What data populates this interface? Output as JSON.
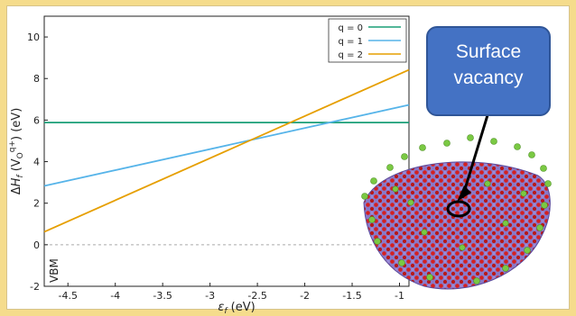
{
  "colors": {
    "background": "#f5dc8c",
    "series_q0": "#1a9e77",
    "series_q1": "#56b4e9",
    "series_q2": "#e69f00",
    "callout_fill": "#4472c4",
    "vbm_line": "#aaaaaa"
  },
  "callout": {
    "line1": "Surface",
    "line2": "vacancy"
  },
  "illustration": {
    "description_icon": "nanoparticle-with-surface-vacancy-icon"
  },
  "chart_data": {
    "type": "line",
    "xlabel": "ε_f (eV)",
    "ylabel": "ΔH_f (V_O^q+) (eV)",
    "xlim": [
      -4.75,
      -0.9
    ],
    "ylim": [
      -2,
      11
    ],
    "xticks": [
      -4.5,
      -4,
      -3.5,
      -3,
      -2.5,
      -2,
      -1.5,
      -1
    ],
    "xtick_labels": [
      "-4.5",
      "-4",
      "-3.5",
      "-3",
      "-2.5",
      "-2",
      "-1.5",
      "-1"
    ],
    "yticks": [
      -2,
      0,
      2,
      4,
      6,
      8,
      10
    ],
    "ytick_labels": [
      "-2",
      "0",
      "2",
      "4",
      "6",
      "8",
      "10"
    ],
    "grid": false,
    "legend_position": "top-right",
    "reference_line": {
      "y": 0,
      "label": "VBM"
    },
    "series": [
      {
        "name": "q = 0",
        "x": [
          -4.75,
          -0.9
        ],
        "y": [
          5.88,
          5.88
        ]
      },
      {
        "name": "q = 1",
        "x": [
          -4.75,
          -0.9
        ],
        "y": [
          2.83,
          6.73
        ]
      },
      {
        "name": "q = 2",
        "x": [
          -4.75,
          -0.9
        ],
        "y": [
          0.62,
          8.42
        ]
      }
    ]
  }
}
